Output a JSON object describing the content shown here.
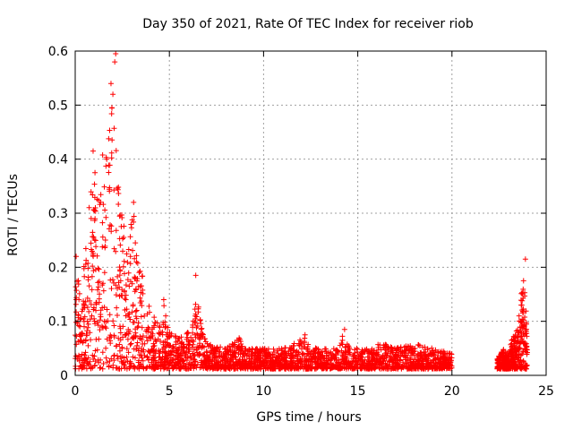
{
  "chart_data": {
    "type": "scatter",
    "title": "Day 350 of 2021, Rate Of TEC Index for receiver riob",
    "xlabel": "GPS time / hours",
    "ylabel": "ROTI / TECUs",
    "xlim": [
      0,
      25
    ],
    "ylim": [
      0,
      0.6
    ],
    "xticks": [
      0,
      5,
      10,
      15,
      20,
      25
    ],
    "yticks": [
      0,
      0.1,
      0.2,
      0.3,
      0.4,
      0.5,
      0.6
    ],
    "grid": true,
    "marker": "+",
    "color": "#ff0000",
    "envelope": [
      [
        0.0,
        0.15
      ],
      [
        0.1,
        0.22
      ],
      [
        0.3,
        0.14
      ],
      [
        0.6,
        0.26
      ],
      [
        0.9,
        0.41
      ],
      [
        1.1,
        0.35
      ],
      [
        1.4,
        0.44
      ],
      [
        1.6,
        0.4
      ],
      [
        1.8,
        0.54
      ],
      [
        2.0,
        0.55
      ],
      [
        2.1,
        0.6
      ],
      [
        2.3,
        0.36
      ],
      [
        2.5,
        0.3
      ],
      [
        2.8,
        0.24
      ],
      [
        3.1,
        0.32
      ],
      [
        3.3,
        0.22
      ],
      [
        3.6,
        0.18
      ],
      [
        4.0,
        0.12
      ],
      [
        4.5,
        0.09
      ],
      [
        4.7,
        0.14
      ],
      [
        5.0,
        0.08
      ],
      [
        5.5,
        0.07
      ],
      [
        6.0,
        0.08
      ],
      [
        6.2,
        0.08
      ],
      [
        6.4,
        0.18
      ],
      [
        6.7,
        0.09
      ],
      [
        7.0,
        0.06
      ],
      [
        8.0,
        0.05
      ],
      [
        8.7,
        0.07
      ],
      [
        9.0,
        0.05
      ],
      [
        10.0,
        0.05
      ],
      [
        11.0,
        0.05
      ],
      [
        12.2,
        0.07
      ],
      [
        12.4,
        0.06
      ],
      [
        13.0,
        0.05
      ],
      [
        14.0,
        0.05
      ],
      [
        14.2,
        0.08
      ],
      [
        14.6,
        0.05
      ],
      [
        15.5,
        0.05
      ],
      [
        16.3,
        0.06
      ],
      [
        17.0,
        0.05
      ],
      [
        18.0,
        0.06
      ],
      [
        19.0,
        0.05
      ],
      [
        20.0,
        0.04
      ]
    ],
    "envelope2": [
      [
        22.4,
        0.03
      ],
      [
        22.7,
        0.05
      ],
      [
        23.0,
        0.04
      ],
      [
        23.2,
        0.07
      ],
      [
        23.5,
        0.09
      ],
      [
        23.7,
        0.16
      ],
      [
        23.9,
        0.18
      ],
      [
        24.0,
        0.05
      ]
    ],
    "outliers": [
      [
        2.15,
        0.595
      ],
      [
        2.1,
        0.58
      ],
      [
        1.9,
        0.54
      ],
      [
        2.0,
        0.52
      ],
      [
        0.95,
        0.415
      ],
      [
        1.05,
        0.375
      ],
      [
        0.05,
        0.22
      ],
      [
        6.4,
        0.185
      ],
      [
        23.9,
        0.215
      ],
      [
        23.8,
        0.175
      ],
      [
        3.1,
        0.32
      ],
      [
        4.7,
        0.14
      ],
      [
        12.2,
        0.075
      ],
      [
        14.3,
        0.085
      ]
    ]
  }
}
